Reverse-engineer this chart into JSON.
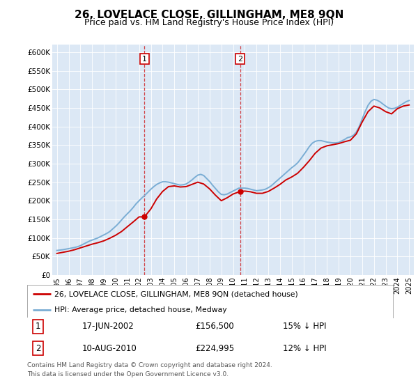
{
  "title": "26, LOVELACE CLOSE, GILLINGHAM, ME8 9QN",
  "subtitle": "Price paid vs. HM Land Registry's House Price Index (HPI)",
  "title_fontsize": 11,
  "subtitle_fontsize": 9,
  "ylim": [
    0,
    620000
  ],
  "yticks": [
    0,
    50000,
    100000,
    150000,
    200000,
    250000,
    300000,
    350000,
    400000,
    450000,
    500000,
    550000,
    600000
  ],
  "ytick_labels": [
    "£0",
    "£50K",
    "£100K",
    "£150K",
    "£200K",
    "£250K",
    "£300K",
    "£350K",
    "£400K",
    "£450K",
    "£500K",
    "£550K",
    "£600K"
  ],
  "bg_color": "#dce8f5",
  "red_color": "#cc0000",
  "blue_color": "#7aadd4",
  "marker1_x": 2002.46,
  "marker2_x": 2010.61,
  "marker1_value": 156500,
  "marker2_value": 224995,
  "marker1_date_str": "17-JUN-2002",
  "marker2_date_str": "10-AUG-2010",
  "marker1_price_str": "£156,500",
  "marker2_price_str": "£224,995",
  "marker1_hpi_str": "15% ↓ HPI",
  "marker2_hpi_str": "12% ↓ HPI",
  "legend_line1": "26, LOVELACE CLOSE, GILLINGHAM, ME8 9QN (detached house)",
  "legend_line2": "HPI: Average price, detached house, Medway",
  "footer_line1": "Contains HM Land Registry data © Crown copyright and database right 2024.",
  "footer_line2": "This data is licensed under the Open Government Licence v3.0.",
  "hpi_x": [
    1995.0,
    1995.25,
    1995.5,
    1995.75,
    1996.0,
    1996.25,
    1996.5,
    1996.75,
    1997.0,
    1997.25,
    1997.5,
    1997.75,
    1998.0,
    1998.25,
    1998.5,
    1998.75,
    1999.0,
    1999.25,
    1999.5,
    1999.75,
    2000.0,
    2000.25,
    2000.5,
    2000.75,
    2001.0,
    2001.25,
    2001.5,
    2001.75,
    2002.0,
    2002.25,
    2002.5,
    2002.75,
    2003.0,
    2003.25,
    2003.5,
    2003.75,
    2004.0,
    2004.25,
    2004.5,
    2004.75,
    2005.0,
    2005.25,
    2005.5,
    2005.75,
    2006.0,
    2006.25,
    2006.5,
    2006.75,
    2007.0,
    2007.25,
    2007.5,
    2007.75,
    2008.0,
    2008.25,
    2008.5,
    2008.75,
    2009.0,
    2009.25,
    2009.5,
    2009.75,
    2010.0,
    2010.25,
    2010.5,
    2010.75,
    2011.0,
    2011.25,
    2011.5,
    2011.75,
    2012.0,
    2012.25,
    2012.5,
    2012.75,
    2013.0,
    2013.25,
    2013.5,
    2013.75,
    2014.0,
    2014.25,
    2014.5,
    2014.75,
    2015.0,
    2015.25,
    2015.5,
    2015.75,
    2016.0,
    2016.25,
    2016.5,
    2016.75,
    2017.0,
    2017.25,
    2017.5,
    2017.75,
    2018.0,
    2018.25,
    2018.5,
    2018.75,
    2019.0,
    2019.25,
    2019.5,
    2019.75,
    2020.0,
    2020.25,
    2020.5,
    2020.75,
    2021.0,
    2021.25,
    2021.5,
    2021.75,
    2022.0,
    2022.25,
    2022.5,
    2022.75,
    2023.0,
    2023.25,
    2023.5,
    2023.75,
    2024.0,
    2024.25,
    2024.5,
    2024.75,
    2025.0
  ],
  "hpi_y": [
    66000,
    67000,
    68000,
    69500,
    71000,
    72500,
    74000,
    76000,
    79000,
    83000,
    87000,
    91000,
    94000,
    97000,
    100000,
    104000,
    108000,
    112000,
    117000,
    124000,
    131000,
    139000,
    148000,
    157000,
    165000,
    173000,
    182000,
    192000,
    200000,
    208000,
    215000,
    223000,
    231000,
    238000,
    244000,
    248000,
    251000,
    251000,
    250000,
    248000,
    246000,
    244000,
    242000,
    243000,
    245000,
    250000,
    256000,
    263000,
    269000,
    271000,
    268000,
    260000,
    252000,
    242000,
    233000,
    224000,
    217000,
    216000,
    218000,
    222000,
    226000,
    230000,
    234000,
    234000,
    234000,
    233000,
    231000,
    229000,
    227000,
    228000,
    229000,
    231000,
    235000,
    240000,
    247000,
    254000,
    261000,
    268000,
    275000,
    282000,
    289000,
    295000,
    302000,
    312000,
    323000,
    334000,
    346000,
    355000,
    360000,
    362000,
    362000,
    360000,
    358000,
    357000,
    356000,
    356000,
    357000,
    361000,
    365000,
    370000,
    372000,
    376000,
    385000,
    400000,
    420000,
    440000,
    457000,
    468000,
    473000,
    471000,
    467000,
    461000,
    455000,
    450000,
    448000,
    449000,
    452000,
    457000,
    462000,
    467000,
    470000
  ],
  "red_x": [
    1995.0,
    1995.5,
    1996.0,
    1996.5,
    1997.0,
    1997.5,
    1998.0,
    1998.5,
    1999.0,
    1999.5,
    2000.0,
    2000.5,
    2001.0,
    2001.5,
    2002.0,
    2002.46,
    2003.0,
    2003.5,
    2004.0,
    2004.5,
    2005.0,
    2005.5,
    2006.0,
    2006.5,
    2007.0,
    2007.5,
    2008.0,
    2008.5,
    2009.0,
    2009.5,
    2010.0,
    2010.61,
    2011.0,
    2011.5,
    2012.0,
    2012.5,
    2013.0,
    2013.5,
    2014.0,
    2014.5,
    2015.0,
    2015.5,
    2016.0,
    2016.5,
    2017.0,
    2017.5,
    2018.0,
    2018.5,
    2019.0,
    2019.5,
    2020.0,
    2020.5,
    2021.0,
    2021.5,
    2022.0,
    2022.5,
    2023.0,
    2023.5,
    2024.0,
    2024.5,
    2025.0
  ],
  "red_y": [
    58000,
    61000,
    64000,
    68000,
    73000,
    78000,
    83000,
    87000,
    92000,
    99000,
    107000,
    117000,
    130000,
    143000,
    156500,
    156500,
    178000,
    205000,
    225000,
    238000,
    240000,
    237000,
    238000,
    244000,
    250000,
    245000,
    232000,
    215000,
    200000,
    208000,
    218000,
    224995,
    226000,
    224000,
    220000,
    220000,
    225000,
    234000,
    244000,
    256000,
    264000,
    274000,
    290000,
    308000,
    328000,
    342000,
    348000,
    351000,
    354000,
    359000,
    363000,
    380000,
    412000,
    440000,
    455000,
    450000,
    440000,
    434000,
    448000,
    455000,
    458000
  ]
}
